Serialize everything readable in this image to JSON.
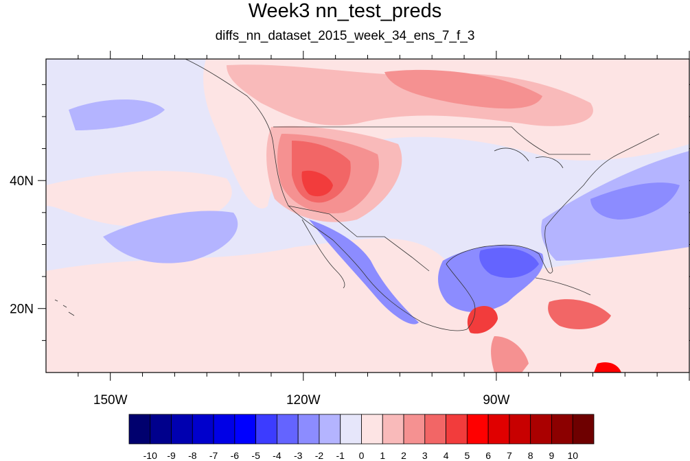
{
  "title": "Week3 nn_test_preds",
  "subtitle": "diffs_nn_dataset_2015_week_34_ens_7_f_3",
  "map": {
    "projection": "cylindrical-equidistant",
    "lon_range": [
      -160,
      -60
    ],
    "lat_range": [
      10,
      59
    ],
    "lon_ticks": [
      {
        "value": -150,
        "label": "150W"
      },
      {
        "value": -120,
        "label": "120W"
      },
      {
        "value": -90,
        "label": "90W"
      }
    ],
    "lat_ticks": [
      {
        "value": 40,
        "label": "40N"
      },
      {
        "value": 20,
        "label": "20N"
      }
    ]
  },
  "colorbar": {
    "labels": [
      "-10",
      "-9",
      "-8",
      "-7",
      "-6",
      "-5",
      "-4",
      "-3",
      "-2",
      "-1",
      "0",
      "1",
      "2",
      "3",
      "4",
      "5",
      "6",
      "7",
      "8",
      "9",
      "10"
    ],
    "colors": [
      "#00006e",
      "#00008c",
      "#0000b0",
      "#0000cc",
      "#0000e6",
      "#0000ff",
      "#3c3cff",
      "#6464ff",
      "#8c8cff",
      "#b4b4ff",
      "#e6e6fa",
      "#fde4e4",
      "#f9baba",
      "#f59191",
      "#f26666",
      "#f23c3c",
      "#ff0000",
      "#e00000",
      "#c80000",
      "#aa0000",
      "#8c0000",
      "#6e0000"
    ]
  }
}
